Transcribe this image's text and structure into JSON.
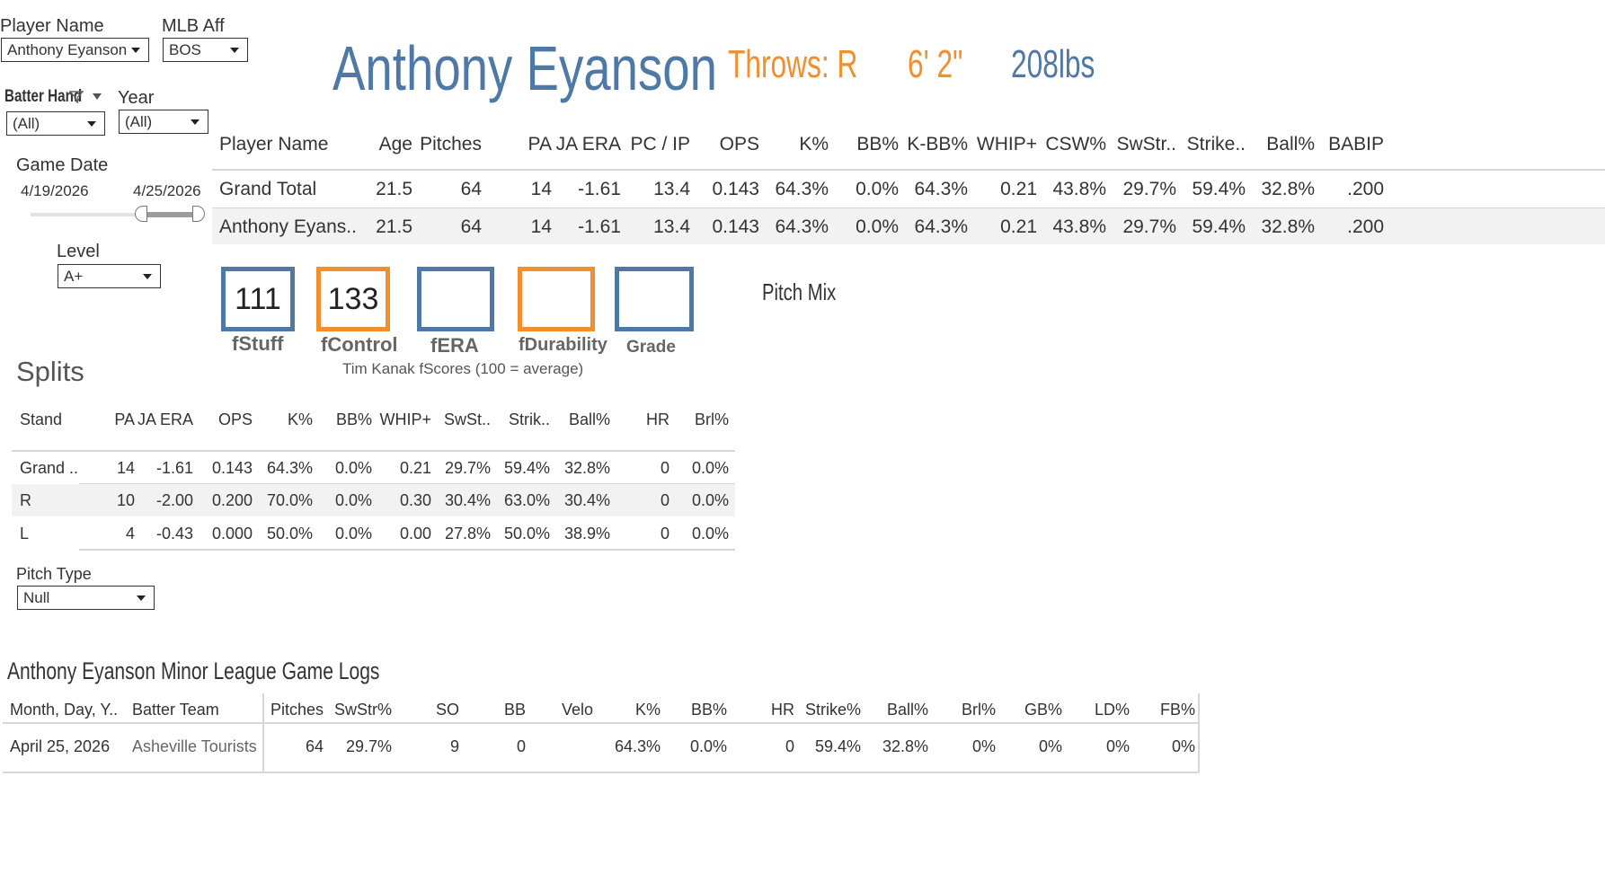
{
  "filters": {
    "player_name": {
      "label": "Player Name",
      "value": "Anthony Eyanson"
    },
    "mlb_aff": {
      "label": "MLB Aff",
      "value": "BOS"
    },
    "batter_hand": {
      "label": "Batter Hand",
      "value": "(All)"
    },
    "year": {
      "label": "Year",
      "value": "(All)"
    },
    "game_date": {
      "label": "Game Date",
      "start": "4/19/2026",
      "end": "4/25/2026"
    },
    "level": {
      "label": "Level",
      "value": "A+"
    },
    "pitch_type": {
      "label": "Pitch Type",
      "value": "Null"
    }
  },
  "header": {
    "player": "Anthony Eyanson",
    "throws": "Throws: R",
    "height": "6' 2\"",
    "weight": "208lbs"
  },
  "summary": {
    "columns": [
      "Player Name",
      "Age",
      "Pitches",
      "PA",
      "JA ERA",
      "PC / IP",
      "OPS",
      "K%",
      "BB%",
      "K-BB%",
      "WHIP+",
      "CSW%",
      "SwStr..",
      "Strike..",
      "Ball%",
      "BABIP"
    ],
    "rows": [
      [
        "Grand Total",
        "21.5",
        "64",
        "14",
        "-1.61",
        "13.4",
        "0.143",
        "64.3%",
        "0.0%",
        "64.3%",
        "0.21",
        "43.8%",
        "29.7%",
        "59.4%",
        "32.8%",
        ".200"
      ],
      [
        "Anthony Eyans..",
        "21.5",
        "64",
        "14",
        "-1.61",
        "13.4",
        "0.143",
        "64.3%",
        "0.0%",
        "64.3%",
        "0.21",
        "43.8%",
        "29.7%",
        "59.4%",
        "32.8%",
        ".200"
      ]
    ]
  },
  "fscores": {
    "items": [
      {
        "label": "fStuff",
        "value": "111"
      },
      {
        "label": "fControl",
        "value": "133"
      },
      {
        "label": "fERA",
        "value": ""
      },
      {
        "label": "fDurability",
        "value": ""
      },
      {
        "label": "Grade",
        "value": ""
      }
    ],
    "caption": "Tim Kanak fScores (100 = average)"
  },
  "pitch_mix": {
    "title": "Pitch Mix"
  },
  "splits": {
    "title": "Splits",
    "columns": [
      "Stand",
      "PA",
      "JA ERA",
      "OPS",
      "K%",
      "BB%",
      "WHIP+",
      "SwSt..",
      "Strik..",
      "Ball%",
      "HR",
      "Brl%"
    ],
    "rows": [
      [
        "Grand ..",
        "14",
        "-1.61",
        "0.143",
        "64.3%",
        "0.0%",
        "0.21",
        "29.7%",
        "59.4%",
        "32.8%",
        "0",
        "0.0%"
      ],
      [
        "R",
        "10",
        "-2.00",
        "0.200",
        "70.0%",
        "0.0%",
        "0.30",
        "30.4%",
        "63.0%",
        "30.4%",
        "0",
        "0.0%"
      ],
      [
        "L",
        "4",
        "-0.43",
        "0.000",
        "50.0%",
        "0.0%",
        "0.00",
        "27.8%",
        "50.0%",
        "38.9%",
        "0",
        "0.0%"
      ]
    ]
  },
  "game_logs": {
    "title": "Anthony Eyanson Minor League Game Logs",
    "columns": [
      "Month, Day, Y..",
      "Batter Team",
      "Pitches",
      "SwStr%",
      "SO",
      "BB",
      "Velo",
      "K%",
      "BB%",
      "HR",
      "Strike%",
      "Ball%",
      "Brl%",
      "GB%",
      "LD%",
      "FB%"
    ],
    "rows": [
      [
        "April 25, 2026",
        "Asheville Tourists",
        "64",
        "29.7%",
        "9",
        "0",
        "",
        "64.3%",
        "0.0%",
        "0",
        "59.4%",
        "32.8%",
        "0%",
        "0%",
        "0%",
        "0%"
      ]
    ]
  },
  "colors": {
    "blue": "#4e79a7",
    "orange": "#f28e2b"
  }
}
